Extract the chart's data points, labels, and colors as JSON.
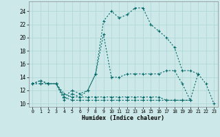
{
  "xlabel": "Humidex (Indice chaleur)",
  "xlim": [
    -0.5,
    23.5
  ],
  "ylim": [
    9.5,
    25.5
  ],
  "yticks": [
    10,
    12,
    14,
    16,
    18,
    20,
    22,
    24
  ],
  "xticks": [
    0,
    1,
    2,
    3,
    4,
    5,
    6,
    7,
    8,
    9,
    10,
    11,
    12,
    13,
    14,
    15,
    16,
    17,
    18,
    19,
    20,
    21,
    22,
    23
  ],
  "bg_color": "#cce8e8",
  "line_color": "#006666",
  "series": [
    {
      "x": [
        0,
        1,
        2,
        3,
        4,
        5,
        6,
        7,
        8,
        9,
        10,
        11,
        12,
        13,
        14,
        15,
        16,
        17,
        18,
        19,
        20,
        21,
        22,
        23
      ],
      "y": [
        13.0,
        13.5,
        13.0,
        13.0,
        11.0,
        12.0,
        11.5,
        12.0,
        14.5,
        20.5,
        14.0,
        14.0,
        14.5,
        14.5,
        14.5,
        14.5,
        14.5,
        15.0,
        15.0,
        13.0,
        10.5,
        14.5,
        13.0,
        10.0
      ]
    },
    {
      "x": [
        0,
        1,
        2,
        3,
        4,
        5,
        6,
        7,
        8,
        9,
        10,
        11,
        12,
        13,
        14,
        15,
        16,
        17,
        18,
        19,
        20,
        21
      ],
      "y": [
        13.0,
        13.5,
        13.0,
        13.0,
        10.5,
        11.5,
        11.0,
        12.0,
        14.5,
        22.5,
        24.0,
        23.0,
        23.5,
        24.5,
        24.5,
        22.0,
        21.0,
        20.0,
        18.5,
        15.0,
        15.0,
        14.5
      ]
    },
    {
      "x": [
        0,
        1,
        2,
        3,
        4,
        5,
        6,
        7,
        8,
        9,
        10,
        11,
        12,
        13,
        14,
        15,
        16,
        17,
        18,
        19,
        20
      ],
      "y": [
        13.0,
        13.0,
        13.0,
        13.0,
        11.5,
        11.0,
        11.0,
        11.0,
        11.0,
        11.0,
        11.0,
        11.0,
        11.0,
        11.0,
        11.0,
        11.0,
        11.0,
        10.5,
        10.5,
        10.5,
        10.5
      ]
    },
    {
      "x": [
        0,
        1,
        2,
        3,
        4,
        5,
        6,
        7,
        8,
        9,
        10,
        11,
        12,
        13,
        14,
        15,
        16,
        17,
        18,
        19,
        20
      ],
      "y": [
        13.0,
        13.0,
        13.0,
        13.0,
        11.0,
        10.5,
        10.5,
        10.5,
        10.5,
        10.5,
        10.5,
        10.5,
        10.5,
        10.5,
        10.5,
        10.5,
        10.5,
        10.5,
        10.5,
        10.5,
        10.5
      ]
    }
  ]
}
